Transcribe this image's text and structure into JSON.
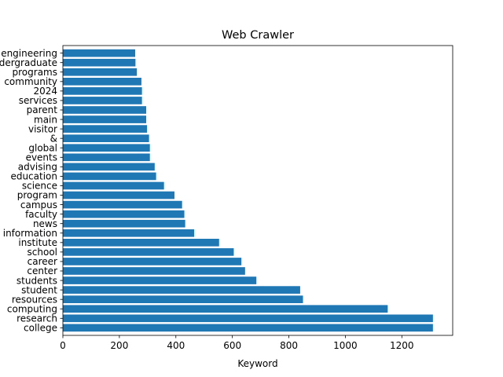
{
  "chart_data": {
    "type": "bar",
    "orientation": "horizontal",
    "title": "Web Crawler",
    "xlabel": "Keyword",
    "ylabel": "",
    "xlim": [
      0,
      1380
    ],
    "xticks": [
      0,
      200,
      400,
      600,
      800,
      1000,
      1200
    ],
    "grid": false,
    "legend": "none",
    "bar_color": "#1f77b4",
    "categories": [
      "college",
      "research",
      "computing",
      "resources",
      "student",
      "students",
      "center",
      "career",
      "school",
      "institute",
      "information",
      "news",
      "faculty",
      "campus",
      "program",
      "science",
      "education",
      "advising",
      "events",
      "global",
      "&",
      "visitor",
      "main",
      "parent",
      "services",
      "2024",
      "community",
      "programs",
      "undergraduate",
      "engineering"
    ],
    "values": [
      1310,
      1310,
      1150,
      850,
      840,
      685,
      645,
      632,
      605,
      553,
      465,
      433,
      430,
      422,
      395,
      358,
      330,
      325,
      308,
      308,
      305,
      298,
      295,
      295,
      280,
      280,
      278,
      262,
      257,
      256
    ]
  }
}
